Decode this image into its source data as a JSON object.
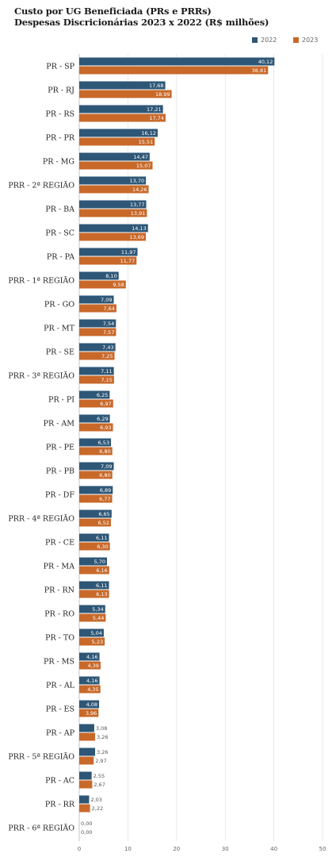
{
  "chart_data": {
    "type": "bar",
    "orientation": "horizontal",
    "title": "Custo por UG Beneficiada (PRs e PRRs)",
    "subtitle": "Despesas Discricionárias 2023 x 2022 (R$ milhões)",
    "legend_position": "top-right",
    "xlim": [
      0,
      50
    ],
    "xticks": [
      "0",
      "10",
      "20",
      "30",
      "40",
      "50"
    ],
    "grid": true,
    "categories": [
      "PR - SP",
      "PR - RJ",
      "PR - RS",
      "PR - PR",
      "PR - MG",
      "PRR - 2ª REGIÃO",
      "PR - BA",
      "PR - SC",
      "PR - PA",
      "PRR - 1ª REGIÃO",
      "PR - GO",
      "PR - MT",
      "PR - SE",
      "PRR - 3ª REGIÃO",
      "PR - PI",
      "PR - AM",
      "PR - PE",
      "PR - PB",
      "PR - DF",
      "PRR - 4ª REGIÃO",
      "PR - CE",
      "PR - MA",
      "PR - RN",
      "PR - RO",
      "PR - TO",
      "PR - MS",
      "PR - AL",
      "PR - ES",
      "PR - AP",
      "PRR - 5ª REGIÃO",
      "PR - AC",
      "PR - RR",
      "PRR - 6ª REGIÃO"
    ],
    "series": [
      {
        "name": "2022",
        "color": "#2e5777",
        "values": [
          40.12,
          17.68,
          17.21,
          16.12,
          14.47,
          13.7,
          13.77,
          14.13,
          11.97,
          8.1,
          7.09,
          7.54,
          7.43,
          7.11,
          6.25,
          6.29,
          6.53,
          7.09,
          6.89,
          6.65,
          6.11,
          5.7,
          6.11,
          5.34,
          5.04,
          4.16,
          4.16,
          4.08,
          3.08,
          3.26,
          2.55,
          2.03,
          0.0
        ],
        "labels": [
          "40,12",
          "17,68",
          "17,21",
          "16,12",
          "14,47",
          "13,70",
          "13,77",
          "14,13",
          "11,97",
          "8,10",
          "7,09",
          "7,54",
          "7,43",
          "7,11",
          "6,25",
          "6,29",
          "6,53",
          "7,09",
          "6,89",
          "6,65",
          "6,11",
          "5,70",
          "6,11",
          "5,34",
          "5,04",
          "4,16",
          "4,16",
          "4,08",
          "3,08",
          "3,26",
          "2,55",
          "2,03",
          "0,00"
        ]
      },
      {
        "name": "2023",
        "color": "#c8692a",
        "values": [
          38.81,
          18.99,
          17.74,
          15.51,
          15.07,
          14.26,
          13.91,
          13.69,
          11.77,
          9.58,
          7.64,
          7.57,
          7.25,
          7.15,
          6.97,
          6.93,
          6.8,
          6.8,
          6.77,
          6.52,
          6.3,
          6.16,
          6.13,
          5.44,
          5.23,
          4.39,
          4.35,
          3.96,
          3.26,
          2.97,
          2.67,
          2.22,
          0.0
        ],
        "labels": [
          "38,81",
          "18,99",
          "17,74",
          "15,51",
          "15,07",
          "14,26",
          "13,91",
          "13,69",
          "11,77",
          "9,58",
          "7,64",
          "7,57",
          "7,25",
          "7,15",
          "6,97",
          "6,93",
          "6,80",
          "6,80",
          "6,77",
          "6,52",
          "6,30",
          "6,16",
          "6,13",
          "5,44",
          "5,23",
          "4,39",
          "4,35",
          "3,96",
          "3,26",
          "2,97",
          "2,67",
          "2,22",
          "0,00"
        ]
      }
    ]
  }
}
